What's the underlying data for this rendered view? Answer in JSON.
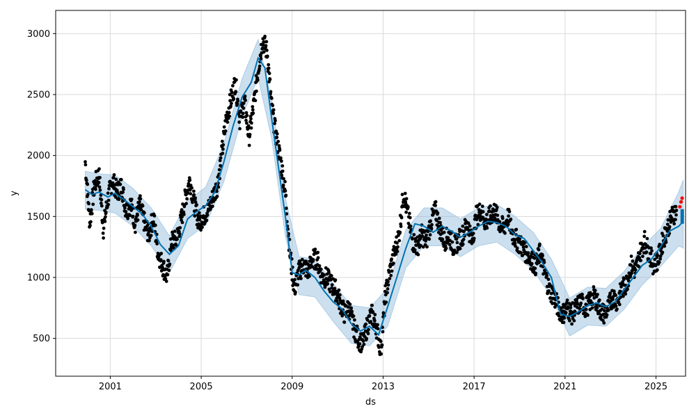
{
  "chart_data": {
    "type": "line",
    "xlabel": "ds",
    "ylabel": "y",
    "xlim": [
      1998.6,
      2026.3
    ],
    "ylim": [
      190,
      3190
    ],
    "grid": true,
    "x_ticks": [
      2001,
      2005,
      2009,
      2013,
      2017,
      2021,
      2025
    ],
    "x_tick_labels": [
      "2001",
      "2005",
      "2009",
      "2013",
      "2017",
      "2021",
      "2025"
    ],
    "y_ticks": [
      500,
      1000,
      1500,
      2000,
      2500,
      3000
    ],
    "y_tick_labels": [
      "500",
      "1000",
      "1500",
      "2000",
      "2500",
      "3000"
    ],
    "colors": {
      "observed": "#000000",
      "forecast_line": "#0072B2",
      "interval_fill": "#8DB9DA",
      "interval_line": "#A9CCE5",
      "recent_actual": "#FF0000",
      "grid": "#D9D9D9"
    },
    "series": [
      {
        "role": "forecast_trend",
        "x": [
          1999.9,
          2000.2,
          2000.5,
          2000.9,
          2001.2,
          2001.6,
          2002.0,
          2002.4,
          2002.8,
          2003.2,
          2003.6,
          2004.0,
          2004.4,
          2004.8,
          2005.2,
          2005.6,
          2006.0,
          2006.4,
          2006.8,
          2007.2,
          2007.5,
          2007.8,
          2008.1,
          2008.4,
          2008.7,
          2009.0,
          2009.3,
          2009.6,
          2010.0,
          2010.4,
          2010.8,
          2011.2,
          2011.6,
          2012.0,
          2012.4,
          2012.8,
          2013.2,
          2013.6,
          2014.0,
          2014.4,
          2014.8,
          2015.2,
          2015.6,
          2016.0,
          2016.4,
          2016.8,
          2017.2,
          2017.6,
          2018.0,
          2018.4,
          2018.8,
          2019.2,
          2019.6,
          2020.0,
          2020.4,
          2020.8,
          2021.2,
          2021.6,
          2022.0,
          2022.4,
          2022.8,
          2023.2,
          2023.6,
          2024.0,
          2024.4,
          2024.8,
          2025.2,
          2025.6,
          2026.0,
          2026.2
        ],
        "y": [
          1720,
          1680,
          1700,
          1660,
          1690,
          1640,
          1580,
          1520,
          1420,
          1270,
          1190,
          1260,
          1480,
          1540,
          1590,
          1700,
          1950,
          2240,
          2480,
          2600,
          2800,
          2720,
          2300,
          1900,
          1500,
          1040,
          1020,
          1060,
          1000,
          890,
          800,
          740,
          620,
          560,
          600,
          530,
          760,
          1000,
          1240,
          1440,
          1420,
          1370,
          1420,
          1380,
          1330,
          1370,
          1420,
          1460,
          1450,
          1420,
          1350,
          1320,
          1220,
          1120,
          1000,
          700,
          680,
          720,
          770,
          790,
          760,
          800,
          900,
          1000,
          1100,
          1150,
          1250,
          1380,
          1420,
          1460
        ]
      },
      {
        "role": "interval_upper",
        "x": [
          1999.9,
          2000.5,
          2001.2,
          2002.0,
          2002.8,
          2003.6,
          2004.4,
          2005.2,
          2006.0,
          2006.8,
          2007.5,
          2008.1,
          2008.7,
          2009.3,
          2010.0,
          2010.8,
          2011.6,
          2012.4,
          2013.2,
          2014.0,
          2014.8,
          2015.6,
          2016.4,
          2017.2,
          2018.0,
          2018.8,
          2019.6,
          2020.4,
          2021.2,
          2022.0,
          2022.8,
          2023.6,
          2024.4,
          2025.2,
          2026.0,
          2026.2
        ],
        "y": [
          1870,
          1850,
          1840,
          1730,
          1570,
          1340,
          1630,
          1740,
          2100,
          2630,
          2950,
          2450,
          1650,
          1170,
          1150,
          950,
          770,
          750,
          910,
          1390,
          1570,
          1570,
          1480,
          1570,
          1600,
          1500,
          1370,
          1150,
          830,
          920,
          910,
          1050,
          1250,
          1400,
          1700,
          1800
        ]
      },
      {
        "role": "interval_lower",
        "x": [
          1999.9,
          2000.5,
          2001.2,
          2002.0,
          2002.8,
          2003.6,
          2004.4,
          2005.2,
          2006.0,
          2006.8,
          2007.5,
          2008.1,
          2008.7,
          2009.3,
          2010.0,
          2010.8,
          2011.6,
          2012.4,
          2013.2,
          2014.0,
          2014.8,
          2015.6,
          2016.4,
          2017.2,
          2018.0,
          2018.8,
          2019.6,
          2020.4,
          2021.2,
          2022.0,
          2022.8,
          2023.6,
          2024.4,
          2025.2,
          2026.0,
          2026.2
        ],
        "y": [
          1560,
          1550,
          1530,
          1420,
          1260,
          1040,
          1320,
          1430,
          1790,
          2320,
          2640,
          2140,
          1340,
          860,
          840,
          640,
          460,
          440,
          600,
          1080,
          1260,
          1260,
          1170,
          1260,
          1290,
          1190,
          1060,
          840,
          520,
          610,
          600,
          740,
          940,
          1090,
          1260,
          1240
        ]
      },
      {
        "role": "observed",
        "x": [
          1999.9,
          2000.1,
          2000.3,
          2000.5,
          2000.7,
          2000.9,
          2001.1,
          2001.3,
          2001.5,
          2001.7,
          2001.9,
          2002.1,
          2002.3,
          2002.5,
          2002.7,
          2002.9,
          2003.1,
          2003.3,
          2003.5,
          2003.7,
          2003.9,
          2004.1,
          2004.3,
          2004.5,
          2004.7,
          2004.9,
          2005.1,
          2005.3,
          2005.5,
          2005.7,
          2005.9,
          2006.1,
          2006.3,
          2006.5,
          2006.7,
          2006.9,
          2007.1,
          2007.3,
          2007.5,
          2007.7,
          2007.9,
          2008.1,
          2008.3,
          2008.5,
          2008.7,
          2008.9,
          2009.1,
          2009.3,
          2009.5,
          2009.7,
          2009.9,
          2010.1,
          2010.3,
          2010.5,
          2010.7,
          2010.9,
          2011.1,
          2011.3,
          2011.5,
          2011.7,
          2011.9,
          2012.1,
          2012.3,
          2012.5,
          2012.7,
          2012.9,
          2013.1,
          2013.3,
          2013.5,
          2013.7,
          2013.9,
          2014.1,
          2014.3,
          2014.5,
          2014.7,
          2014.9,
          2015.1,
          2015.3,
          2015.5,
          2015.7,
          2015.9,
          2016.1,
          2016.3,
          2016.5,
          2016.7,
          2016.9,
          2017.1,
          2017.3,
          2017.5,
          2017.7,
          2017.9,
          2018.1,
          2018.3,
          2018.5,
          2018.7,
          2018.9,
          2019.1,
          2019.3,
          2019.5,
          2019.7,
          2019.9,
          2020.1,
          2020.3,
          2020.5,
          2020.7,
          2020.9,
          2021.1,
          2021.3,
          2021.5,
          2021.7,
          2021.9,
          2022.1,
          2022.3,
          2022.5,
          2022.7,
          2022.9,
          2023.1,
          2023.3,
          2023.5,
          2023.7,
          2023.9,
          2024.1,
          2024.3,
          2024.5,
          2024.7,
          2024.9,
          2025.1,
          2025.3,
          2025.5,
          2025.7,
          2025.9
        ],
        "y": [
          1950,
          1450,
          1750,
          1850,
          1400,
          1650,
          1800,
          1700,
          1750,
          1550,
          1600,
          1450,
          1600,
          1450,
          1350,
          1500,
          1200,
          1100,
          1000,
          1300,
          1300,
          1450,
          1650,
          1800,
          1600,
          1450,
          1500,
          1550,
          1650,
          1750,
          2000,
          2300,
          2450,
          2600,
          2300,
          2450,
          2150,
          2400,
          2700,
          2950,
          2850,
          2400,
          2150,
          1950,
          1700,
          1200,
          900,
          1050,
          1100,
          1050,
          1150,
          1150,
          1000,
          1000,
          950,
          900,
          800,
          700,
          750,
          600,
          500,
          450,
          600,
          700,
          600,
          400,
          850,
          1050,
          1200,
          1350,
          1700,
          1500,
          1300,
          1250,
          1350,
          1300,
          1450,
          1550,
          1400,
          1300,
          1350,
          1250,
          1300,
          1350,
          1450,
          1300,
          1500,
          1550,
          1450,
          1500,
          1550,
          1450,
          1400,
          1500,
          1350,
          1300,
          1250,
          1200,
          1150,
          1100,
          1200,
          1050,
          900,
          850,
          750,
          700,
          750,
          700,
          750,
          800,
          750,
          800,
          850,
          750,
          700,
          750,
          850,
          800,
          900,
          950,
          1100,
          1050,
          1200,
          1300,
          1200,
          1100,
          1150,
          1300,
          1400,
          1500,
          1550
        ]
      },
      {
        "role": "recent_actual",
        "x": [
          2026.05,
          2026.1,
          2026.15
        ],
        "y": [
          1580,
          1620,
          1650
        ]
      }
    ]
  }
}
